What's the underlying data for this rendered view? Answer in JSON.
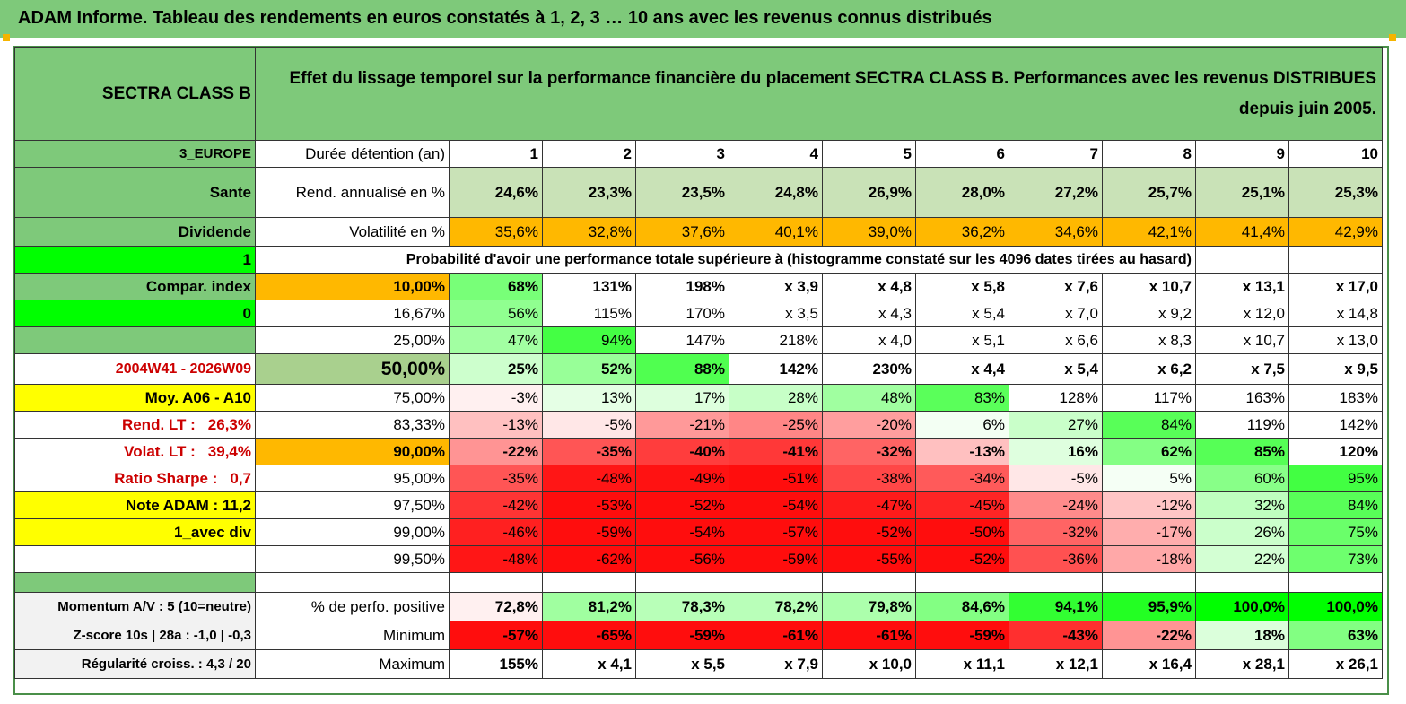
{
  "title": "ADAM Informe. Tableau des rendements en euros constatés à 1, 2, 3 … 10 ans avec les revenus connus distribués",
  "fund": "SECTRA CLASS B",
  "description": "Effet du lissage temporel sur la performance financière du placement SECTRA CLASS B. Performances avec les revenus DISTRIBUES depuis juin 2005.",
  "left": {
    "region": "3_EUROPE",
    "sector": "Sante",
    "income": "Dividende",
    "flag1": "1",
    "compar": "Compar. index",
    "flag0": "0",
    "period": "2004W41 - 2026W09",
    "moy": "Moy. A06 - A10",
    "rend_label": "Rend. LT :",
    "rend_value": "26,3%",
    "volat_label": "Volat. LT :",
    "volat_value": "39,4%",
    "sharpe_label": "Ratio Sharpe :",
    "sharpe_value": "0,7",
    "note": "Note ADAM : 11,2",
    "mode": "1_avec div"
  },
  "header": {
    "duration_label": "Durée détention (an)",
    "years": [
      "1",
      "2",
      "3",
      "4",
      "5",
      "6",
      "7",
      "8",
      "9",
      "10"
    ]
  },
  "rend": {
    "label": "Rend. annualisé en %",
    "values": [
      "24,6%",
      "23,3%",
      "23,5%",
      "24,8%",
      "26,9%",
      "28,0%",
      "27,2%",
      "25,7%",
      "25,1%",
      "25,3%"
    ]
  },
  "vol": {
    "label": "Volatilité en %",
    "values": [
      "35,6%",
      "32,8%",
      "37,6%",
      "40,1%",
      "39,0%",
      "36,2%",
      "34,6%",
      "42,1%",
      "41,4%",
      "42,9%"
    ]
  },
  "proba_title": "Probabilité d'avoir une performance totale supérieure à (histogramme constaté sur les 4096 dates tirées au hasard)",
  "prob": [
    {
      "p": "10,00%",
      "values": [
        "68%",
        "131%",
        "198%",
        "x 3,9",
        "x 4,8",
        "x 5,8",
        "x 7,6",
        "x 10,7",
        "x 13,1",
        "x 17,0"
      ]
    },
    {
      "p": "16,67%",
      "values": [
        "56%",
        "115%",
        "170%",
        "x 3,5",
        "x 4,3",
        "x 5,4",
        "x 7,0",
        "x 9,2",
        "x 12,0",
        "x 14,8"
      ]
    },
    {
      "p": "25,00%",
      "values": [
        "47%",
        "94%",
        "147%",
        "218%",
        "x 4,0",
        "x 5,1",
        "x 6,6",
        "x 8,3",
        "x 10,7",
        "x 13,0"
      ]
    },
    {
      "p": "50,00%",
      "values": [
        "25%",
        "52%",
        "88%",
        "142%",
        "230%",
        "x 4,4",
        "x 5,4",
        "x 6,2",
        "x 7,5",
        "x 9,5"
      ]
    },
    {
      "p": "75,00%",
      "values": [
        "-3%",
        "13%",
        "17%",
        "28%",
        "48%",
        "83%",
        "128%",
        "117%",
        "163%",
        "183%"
      ]
    },
    {
      "p": "83,33%",
      "values": [
        "-13%",
        "-5%",
        "-21%",
        "-25%",
        "-20%",
        "6%",
        "27%",
        "84%",
        "119%",
        "142%"
      ]
    },
    {
      "p": "90,00%",
      "values": [
        "-22%",
        "-35%",
        "-40%",
        "-41%",
        "-32%",
        "-13%",
        "16%",
        "62%",
        "85%",
        "120%"
      ]
    },
    {
      "p": "95,00%",
      "values": [
        "-35%",
        "-48%",
        "-49%",
        "-51%",
        "-38%",
        "-34%",
        "-5%",
        "5%",
        "60%",
        "95%"
      ]
    },
    {
      "p": "97,50%",
      "values": [
        "-42%",
        "-53%",
        "-52%",
        "-54%",
        "-47%",
        "-45%",
        "-24%",
        "-12%",
        "32%",
        "84%"
      ]
    },
    {
      "p": "99,00%",
      "values": [
        "-46%",
        "-59%",
        "-54%",
        "-57%",
        "-52%",
        "-50%",
        "-32%",
        "-17%",
        "26%",
        "75%"
      ]
    },
    {
      "p": "99,50%",
      "values": [
        "-48%",
        "-62%",
        "-56%",
        "-59%",
        "-55%",
        "-52%",
        "-36%",
        "-18%",
        "22%",
        "73%"
      ]
    }
  ],
  "bottom": [
    {
      "left": "Momentum A/V : 5 (10=neutre)",
      "label": "% de perfo. positive",
      "values": [
        "72,8%",
        "81,2%",
        "78,3%",
        "78,2%",
        "79,8%",
        "84,6%",
        "94,1%",
        "95,9%",
        "100,0%",
        "100,0%"
      ]
    },
    {
      "left": "Z-score 10s | 28a : -1,0 | -0,3",
      "label": "Minimum",
      "values": [
        "-57%",
        "-65%",
        "-59%",
        "-61%",
        "-61%",
        "-59%",
        "-43%",
        "-22%",
        "18%",
        "63%"
      ]
    },
    {
      "left": "Régularité croiss. : 4,3 / 20",
      "label": "Maximum",
      "values": [
        "155%",
        "x 4,1",
        "x 5,5",
        "x 7,9",
        "x 10,0",
        "x 11,1",
        "x 12,1",
        "x 16,4",
        "x 28,1",
        "x 26,1"
      ]
    }
  ],
  "colors": {
    "header_green": "#7ec97a",
    "light_green": "#c9e2b7",
    "orange": "#ffb800",
    "yellow": "#ffff00",
    "bright_green": "#00ff00",
    "label_red": "#cc0000"
  }
}
